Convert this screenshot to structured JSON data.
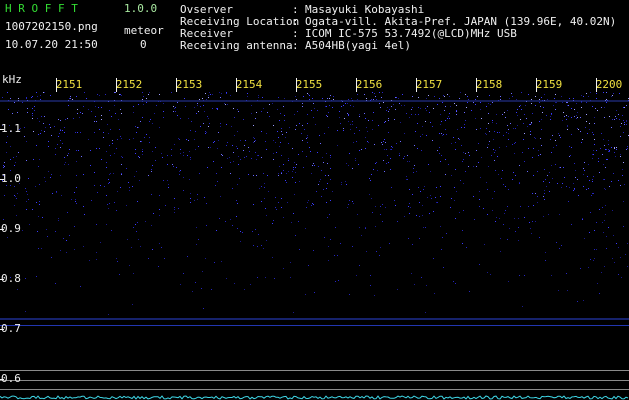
{
  "header": {
    "app_name": "H R O F F T",
    "version": "1.0.0",
    "file_name": "1007202150.png",
    "datetime": "10.07.20 21:50",
    "meteor_label": "meteor",
    "meteor_count": "0",
    "info": [
      {
        "label": "Ovserver",
        "value": "Masayuki Kobayashi"
      },
      {
        "label": "Receiving Location",
        "value": "Ogata-vill. Akita-Pref. JAPAN (139.96E, 40.02N)"
      },
      {
        "label": "Receiver",
        "value": "ICOM IC-575 53.7492(@LCD)MHz USB"
      },
      {
        "label": "Receiving antenna",
        "value": "A504HB(yagi 4el)"
      }
    ]
  },
  "spectrogram": {
    "y_unit": "kHz",
    "y_ticks": [
      "1.1",
      "1.0",
      "0.9",
      "0.8",
      "0.7",
      "0.6"
    ],
    "x_ticks": [
      "2151",
      "2152",
      "2153",
      "2154",
      "2155",
      "2156",
      "2157",
      "2158",
      "2159",
      "2200"
    ]
  }
}
